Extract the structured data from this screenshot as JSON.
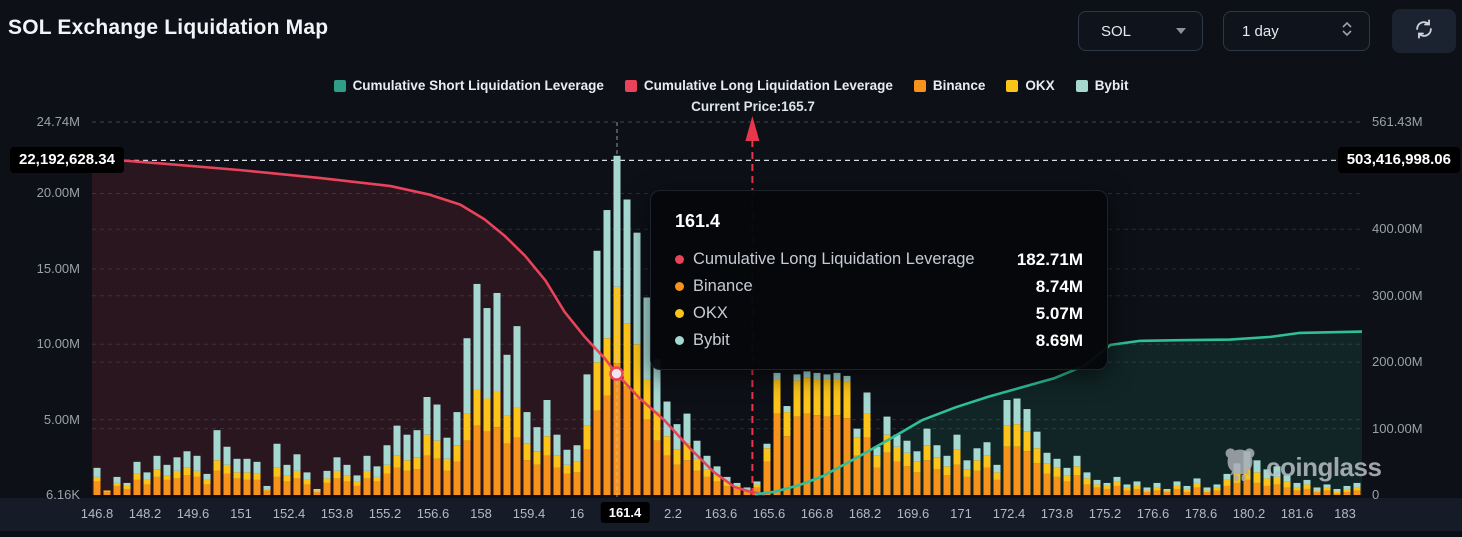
{
  "header": {
    "title": "SOL Exchange Liquidation Map",
    "symbol_select": "SOL",
    "interval_select": "1 day"
  },
  "legend": {
    "items": [
      {
        "label": "Cumulative Short Liquidation Leverage",
        "color": "#2f9e88"
      },
      {
        "label": "Cumulative Long Liquidation Leverage",
        "color": "#e8435a"
      },
      {
        "label": "Binance",
        "color": "#f7931a"
      },
      {
        "label": "OKX",
        "color": "#fcc419"
      },
      {
        "label": "Bybit",
        "color": "#a6d8d2"
      }
    ]
  },
  "annotations": {
    "current_price_label": "Current Price:165.7",
    "current_price": 165.7,
    "current_price_frac": 0.52
  },
  "badges": {
    "left": "22,192,628.34",
    "right": "503,416,998.06"
  },
  "tooltip": {
    "title": "161.4",
    "rows": [
      {
        "label": "Cumulative Long Liquidation Leverage",
        "value": "182.71M",
        "color": "#e8435a"
      },
      {
        "label": "Binance",
        "value": "8.74M",
        "color": "#f7931a"
      },
      {
        "label": "OKX",
        "value": "5.07M",
        "color": "#fcc419"
      },
      {
        "label": "Bybit",
        "value": "8.69M",
        "color": "#a6d8d2"
      }
    ]
  },
  "watermark": {
    "text": "coinglass"
  },
  "chart_data": {
    "type": "bar+line",
    "title": "SOL Exchange Liquidation Map",
    "x_axis_labels": [
      "146.8",
      "148.2",
      "149.6",
      "151",
      "152.4",
      "153.8",
      "155.2",
      "156.6",
      "158",
      "159.4",
      "16",
      "161.4",
      "2.2",
      "163.6",
      "165.6",
      "166.8",
      "168.2",
      "169.6",
      "171",
      "172.4",
      "173.8",
      "175.2",
      "176.6",
      "178.6",
      "180.2",
      "181.6",
      "183"
    ],
    "highlight_label_index": 11,
    "hover_index": 52,
    "left_axis": {
      "max": 24.74,
      "unit": "M",
      "ticks": [
        {
          "label": "24.74M",
          "value": 24.74
        },
        {
          "label": "20.00M",
          "value": 20
        },
        {
          "label": "15.00M",
          "value": 15
        },
        {
          "label": "10.00M",
          "value": 10
        },
        {
          "label": "5.00M",
          "value": 5
        },
        {
          "label": "6.16K",
          "value": 0.00616
        }
      ]
    },
    "right_axis": {
      "max": 561.43,
      "unit": "M",
      "ticks": [
        {
          "label": "561.43M",
          "value": 561.43
        },
        {
          "label": "400.00M",
          "value": 400
        },
        {
          "label": "300.00M",
          "value": 300
        },
        {
          "label": "200.00M",
          "value": 200
        },
        {
          "label": "100.00M",
          "value": 100
        },
        {
          "label": "0",
          "value": 0
        }
      ]
    },
    "max_marker_value_left": 22.19262834,
    "bars": {
      "exchanges": [
        "Binance",
        "OKX",
        "Bybit"
      ],
      "colors": [
        "#f7931a",
        "#fcc419",
        "#a6d8d2"
      ],
      "unit": "M",
      "values": [
        [
          0.9,
          0.3,
          0.6
        ],
        [
          0.2,
          0.1,
          0.0
        ],
        [
          0.6,
          0.2,
          0.4
        ],
        [
          0.4,
          0.2,
          0.2
        ],
        [
          1.0,
          0.4,
          0.8
        ],
        [
          0.7,
          0.3,
          0.5
        ],
        [
          1.2,
          0.5,
          0.9
        ],
        [
          1.0,
          0.3,
          0.7
        ],
        [
          1.1,
          0.5,
          0.9
        ],
        [
          1.3,
          0.5,
          1.1
        ],
        [
          1.2,
          0.4,
          1.0
        ],
        [
          0.7,
          0.3,
          0.4
        ],
        [
          1.6,
          0.7,
          2.0
        ],
        [
          1.4,
          0.6,
          1.2
        ],
        [
          1.1,
          0.4,
          0.9
        ],
        [
          1.0,
          0.5,
          0.9
        ],
        [
          1.0,
          0.4,
          0.8
        ],
        [
          0.3,
          0.1,
          0.2
        ],
        [
          1.2,
          0.6,
          1.6
        ],
        [
          0.9,
          0.4,
          0.7
        ],
        [
          1.1,
          0.5,
          1.1
        ],
        [
          0.7,
          0.3,
          0.5
        ],
        [
          0.2,
          0.1,
          0.1
        ],
        [
          0.8,
          0.3,
          0.5
        ],
        [
          1.1,
          0.5,
          0.9
        ],
        [
          0.9,
          0.4,
          0.7
        ],
        [
          0.6,
          0.3,
          0.4
        ],
        [
          1.1,
          0.5,
          1.0
        ],
        [
          0.9,
          0.3,
          0.7
        ],
        [
          1.4,
          0.6,
          1.3
        ],
        [
          1.8,
          0.8,
          2.0
        ],
        [
          1.6,
          0.7,
          1.7
        ],
        [
          1.7,
          0.8,
          1.8
        ],
        [
          2.6,
          1.4,
          2.5
        ],
        [
          2.4,
          1.2,
          2.4
        ],
        [
          1.6,
          0.8,
          1.4
        ],
        [
          2.2,
          1.1,
          2.2
        ],
        [
          3.6,
          1.8,
          5.0
        ],
        [
          4.6,
          2.4,
          7.0
        ],
        [
          4.2,
          2.2,
          6.0
        ],
        [
          4.5,
          2.4,
          6.5
        ],
        [
          3.4,
          1.9,
          4.0
        ],
        [
          3.8,
          2.0,
          5.4
        ],
        [
          2.3,
          1.1,
          2.1
        ],
        [
          2.0,
          0.9,
          1.6
        ],
        [
          2.6,
          1.3,
          2.4
        ],
        [
          1.8,
          0.8,
          1.4
        ],
        [
          1.4,
          0.6,
          1.0
        ],
        [
          1.5,
          0.7,
          1.1
        ],
        [
          3.0,
          1.6,
          3.4
        ],
        [
          5.6,
          3.2,
          7.4
        ],
        [
          6.6,
          3.8,
          8.5
        ],
        [
          8.74,
          5.07,
          8.69
        ],
        [
          7.2,
          4.2,
          8.2
        ],
        [
          6.4,
          3.6,
          7.4
        ],
        [
          5.0,
          2.7,
          5.4
        ],
        [
          3.6,
          1.9,
          3.5
        ],
        [
          2.6,
          1.3,
          2.3
        ],
        [
          2.0,
          1.0,
          1.7
        ],
        [
          2.3,
          1.1,
          2.0
        ],
        [
          1.6,
          0.8,
          1.2
        ],
        [
          1.2,
          0.5,
          0.9
        ],
        [
          0.9,
          0.4,
          0.6
        ],
        [
          0.6,
          0.3,
          0.3
        ],
        [
          0.4,
          0.2,
          0.2
        ],
        [
          0.3,
          0.1,
          0.1
        ],
        [
          0.5,
          0.2,
          0.2
        ],
        [
          2.2,
          0.9,
          0.3
        ],
        [
          5.4,
          2.3,
          0.4
        ],
        [
          3.9,
          1.6,
          0.4
        ],
        [
          5.2,
          2.4,
          0.4
        ],
        [
          5.4,
          2.4,
          0.4
        ],
        [
          5.3,
          2.4,
          0.4
        ],
        [
          5.2,
          2.5,
          0.3
        ],
        [
          5.3,
          2.4,
          0.4
        ],
        [
          5.1,
          2.4,
          0.4
        ],
        [
          2.6,
          1.2,
          0.6
        ],
        [
          3.8,
          1.6,
          1.4
        ],
        [
          1.8,
          0.8,
          0.6
        ],
        [
          2.8,
          1.2,
          1.2
        ],
        [
          2.2,
          1.0,
          0.8
        ],
        [
          1.9,
          0.9,
          0.8
        ],
        [
          1.5,
          0.7,
          0.7
        ],
        [
          2.3,
          1.0,
          1.1
        ],
        [
          1.7,
          0.8,
          0.8
        ],
        [
          1.3,
          0.6,
          0.7
        ],
        [
          2.0,
          1.0,
          1.0
        ],
        [
          1.2,
          0.5,
          0.6
        ],
        [
          1.6,
          0.7,
          0.8
        ],
        [
          1.8,
          0.8,
          0.9
        ],
        [
          1.0,
          0.5,
          0.5
        ],
        [
          3.2,
          1.4,
          1.7
        ],
        [
          3.2,
          1.5,
          1.7
        ],
        [
          2.9,
          1.3,
          1.5
        ],
        [
          2.1,
          1.0,
          1.1
        ],
        [
          1.4,
          0.7,
          0.7
        ],
        [
          1.2,
          0.6,
          0.6
        ],
        [
          0.9,
          0.4,
          0.5
        ],
        [
          1.3,
          0.6,
          0.7
        ],
        [
          0.7,
          0.4,
          0.4
        ],
        [
          0.5,
          0.2,
          0.3
        ],
        [
          0.4,
          0.2,
          0.2
        ],
        [
          0.6,
          0.3,
          0.3
        ],
        [
          0.3,
          0.2,
          0.2
        ],
        [
          0.4,
          0.2,
          0.3
        ],
        [
          0.2,
          0.1,
          0.2
        ],
        [
          0.3,
          0.2,
          0.3
        ],
        [
          0.2,
          0.1,
          0.1
        ],
        [
          0.4,
          0.2,
          0.3
        ],
        [
          0.2,
          0.2,
          0.2
        ],
        [
          0.5,
          0.3,
          0.3
        ],
        [
          0.2,
          0.1,
          0.2
        ],
        [
          0.3,
          0.2,
          0.2
        ],
        [
          0.6,
          0.4,
          0.4
        ],
        [
          0.8,
          0.6,
          0.7
        ],
        [
          1.0,
          0.8,
          1.1
        ],
        [
          0.8,
          0.7,
          0.8
        ],
        [
          0.6,
          0.5,
          0.6
        ],
        [
          0.7,
          0.5,
          0.7
        ],
        [
          0.5,
          0.4,
          0.4
        ],
        [
          0.3,
          0.2,
          0.3
        ],
        [
          0.4,
          0.3,
          0.3
        ],
        [
          0.2,
          0.1,
          0.2
        ],
        [
          0.3,
          0.2,
          0.2
        ],
        [
          0.1,
          0.1,
          0.2
        ],
        [
          0.2,
          0.2,
          0.2
        ],
        [
          0.3,
          0.2,
          0.3
        ]
      ]
    },
    "series": [
      {
        "name": "Cumulative Long Liquidation Leverage",
        "axis": "right",
        "unit": "M",
        "color": "#e8435a",
        "fill": "rgba(232,67,90,0.13)",
        "points": [
          [
            0.0,
            507
          ],
          [
            0.054,
            499
          ],
          [
            0.117,
            489
          ],
          [
            0.18,
            477
          ],
          [
            0.235,
            465
          ],
          [
            0.266,
            452
          ],
          [
            0.29,
            437
          ],
          [
            0.309,
            415
          ],
          [
            0.325,
            390
          ],
          [
            0.341,
            360
          ],
          [
            0.357,
            323
          ],
          [
            0.372,
            276
          ],
          [
            0.388,
            238
          ],
          [
            0.404,
            205
          ],
          [
            0.413,
            182.71
          ],
          [
            0.431,
            146
          ],
          [
            0.451,
            112
          ],
          [
            0.471,
            70
          ],
          [
            0.49,
            34
          ],
          [
            0.506,
            12
          ],
          [
            0.52,
            4
          ],
          [
            0.53,
            1
          ]
        ]
      },
      {
        "name": "Cumulative Short Liquidation Leverage",
        "axis": "right",
        "unit": "M",
        "color": "#2fbf9a",
        "fill": "rgba(47,191,154,0.12)",
        "points": [
          [
            0.522,
            1
          ],
          [
            0.538,
            5
          ],
          [
            0.557,
            15
          ],
          [
            0.575,
            28
          ],
          [
            0.601,
            55
          ],
          [
            0.627,
            83
          ],
          [
            0.654,
            113
          ],
          [
            0.68,
            132
          ],
          [
            0.706,
            148
          ],
          [
            0.732,
            162
          ],
          [
            0.758,
            176
          ],
          [
            0.782,
            195
          ],
          [
            0.802,
            226
          ],
          [
            0.825,
            232
          ],
          [
            0.857,
            233
          ],
          [
            0.896,
            234
          ],
          [
            0.928,
            238
          ],
          [
            0.951,
            244
          ],
          [
            1.0,
            246
          ]
        ]
      }
    ],
    "marker": {
      "series": "Cumulative Long Liquidation Leverage",
      "frac": 0.413,
      "value": 182.71
    }
  }
}
